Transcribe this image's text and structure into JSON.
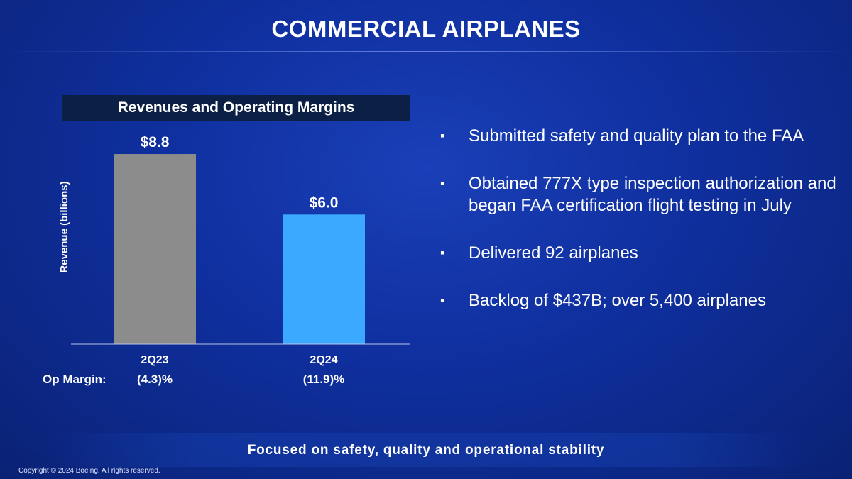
{
  "slide": {
    "title": "COMMERCIAL AIRPLANES",
    "footer": "Focused on safety, quality and operational stability",
    "copyright": "Copyright © 2024 Boeing. All rights reserved."
  },
  "chart_header": "Revenues and Operating Margins",
  "bullets": [
    "Submitted safety and quality plan to the FAA",
    "Obtained 777X type inspection authorization and began FAA certification flight testing in July",
    "Delivered 92 airplanes",
    "Backlog of $437B; over 5,400 airplanes"
  ],
  "bullet_marker": "▪",
  "colors": {
    "bar_2q23": "#8c8c8c",
    "bar_2q24": "#3aa9ff",
    "header_bg": "#0c1f44"
  },
  "chart_data": {
    "type": "bar",
    "title": "Revenues and Operating Margins",
    "ylabel": "Revenue (billions)",
    "xlabel": "",
    "categories": [
      "2Q23",
      "2Q24"
    ],
    "values": [
      8.8,
      6.0
    ],
    "value_labels": [
      "$8.8",
      "$6.0"
    ],
    "ylim": [
      0,
      10
    ],
    "grid": false,
    "op_margin_label": "Op Margin:",
    "op_margins": [
      "(4.3)%",
      "(11.9)%"
    ]
  }
}
